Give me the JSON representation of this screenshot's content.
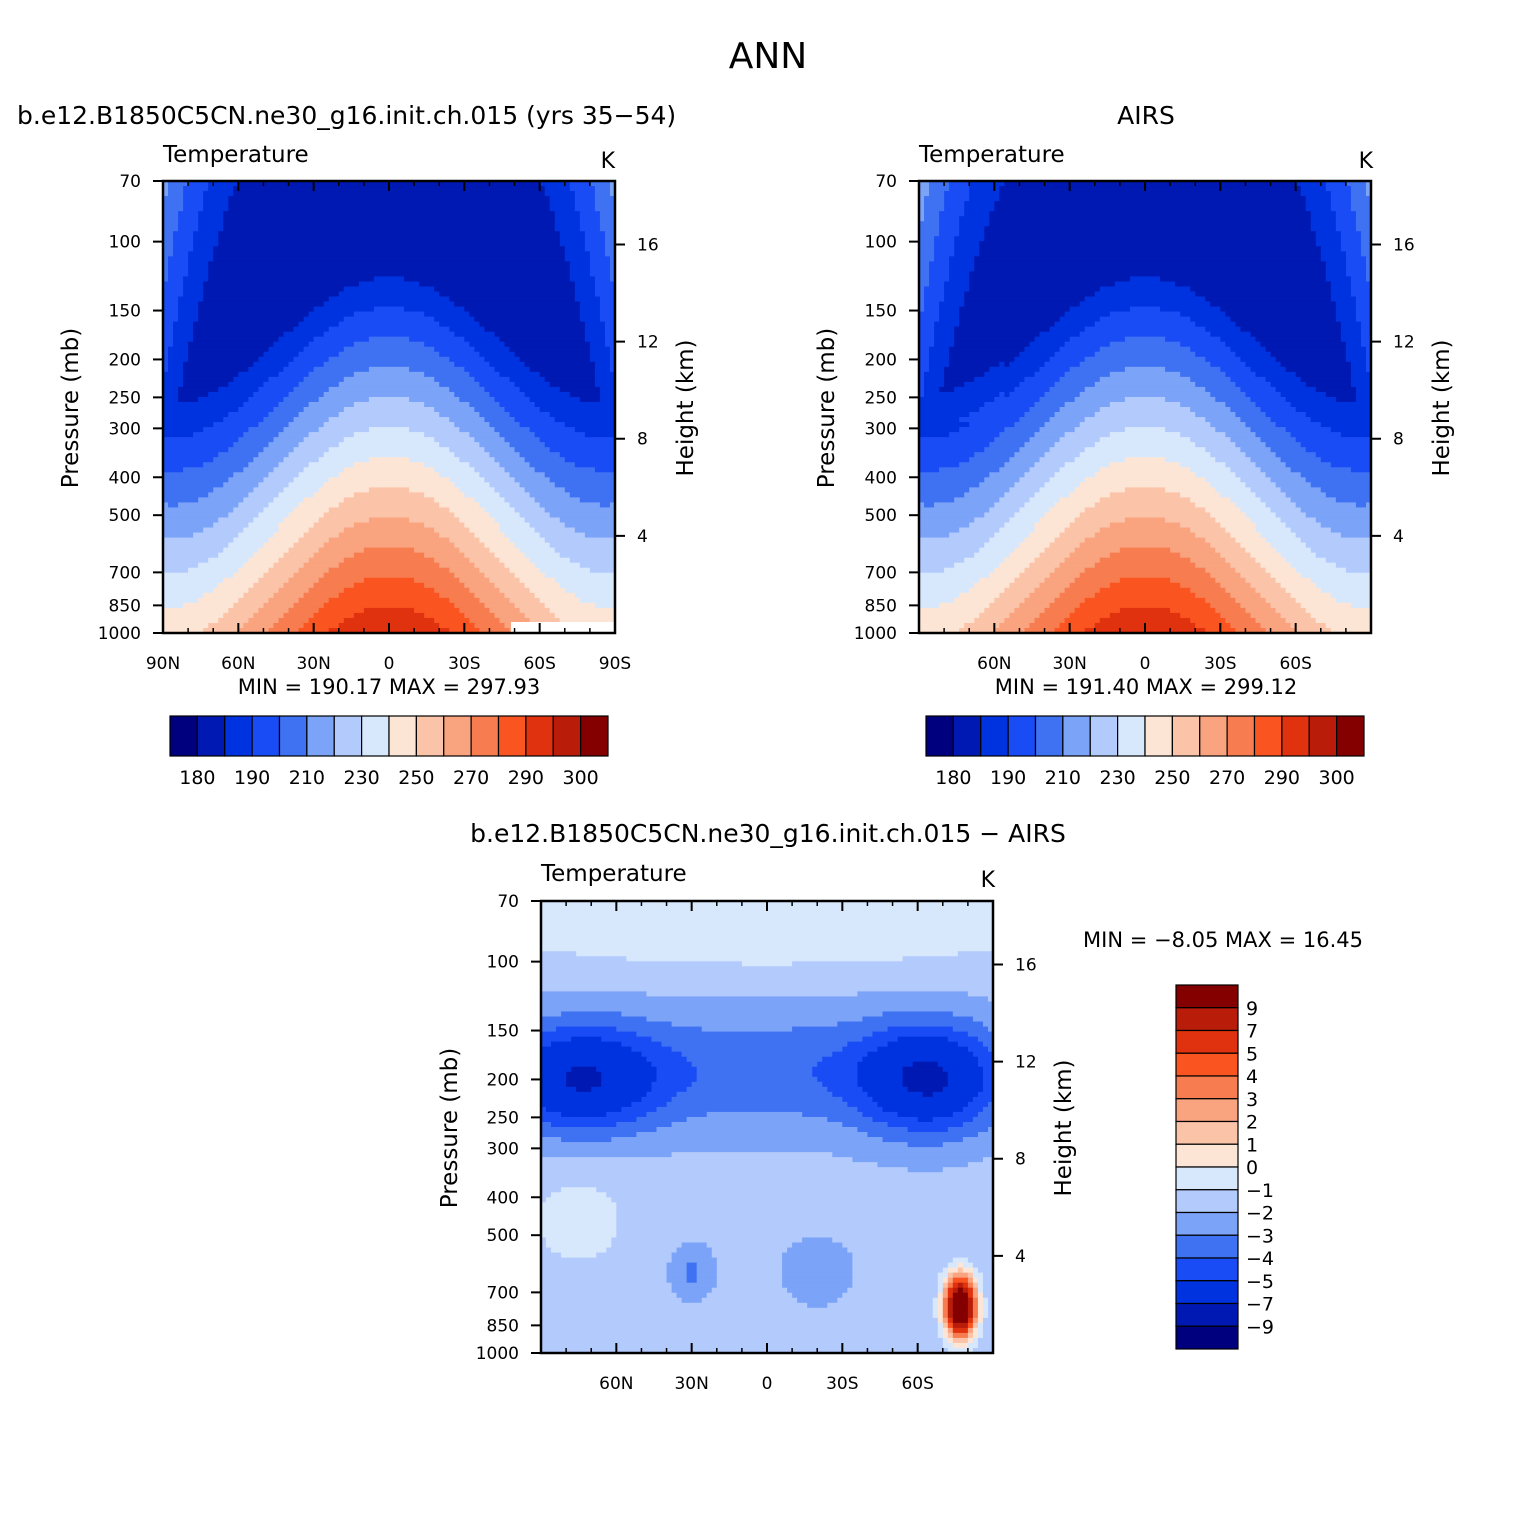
{
  "figure": {
    "title": "ANN"
  },
  "colors": {
    "abs_palette": [
      "#00007f",
      "#0019b2",
      "#0033e0",
      "#1a4cf5",
      "#3f72f2",
      "#7ba3f8",
      "#b3cafd",
      "#d8e8fc",
      "#fde5d6",
      "#fbc4a9",
      "#f9a37f",
      "#f77c4f",
      "#fa5420",
      "#e13210",
      "#b91d09",
      "#840000"
    ],
    "diff_palette": [
      "#00007f",
      "#0019b2",
      "#0033e0",
      "#1a4cf5",
      "#3f72f2",
      "#7ba3f8",
      "#b3cafd",
      "#d8e8fc",
      "#fde5d6",
      "#fbc4a9",
      "#f9a37f",
      "#f77c4f",
      "#fa5420",
      "#e13210",
      "#b91d09",
      "#840000"
    ]
  },
  "chart_data": [
    {
      "type": "heatmap",
      "id": "model",
      "title": "b.e12.B1850C5CN.ne30_g16.init.ch.015 (yrs 35−54)",
      "left_label": "Temperature",
      "units": "K",
      "xlabel": "",
      "ylabel": "Pressure (mb)",
      "y2label": "Height (km)",
      "x_ticks": [
        "90N",
        "60N",
        "30N",
        "0",
        "30S",
        "60S",
        "90S"
      ],
      "x_values": [
        90,
        60,
        30,
        0,
        -30,
        -60,
        -90
      ],
      "y_ticks": [
        "70",
        "100",
        "150",
        "200",
        "250",
        "300",
        "400",
        "500",
        "700",
        "850",
        "1000"
      ],
      "y_values": [
        70,
        100,
        150,
        200,
        250,
        300,
        400,
        500,
        700,
        850,
        1000
      ],
      "y_log": true,
      "height_ticks": [
        "4",
        "8",
        "12",
        "16"
      ],
      "height_values": [
        4,
        8,
        12,
        16
      ],
      "stats": "MIN =  190.17   MAX =  297.93",
      "min": 190.17,
      "max": 297.93,
      "levels": [
        180,
        190,
        200,
        210,
        220,
        230,
        240,
        250,
        260,
        270,
        280,
        290,
        300
      ],
      "colorbar_labels": [
        "180",
        "190",
        "210",
        "230",
        "250",
        "270",
        "290",
        "300"
      ]
    },
    {
      "type": "heatmap",
      "id": "obs",
      "title": "AIRS",
      "left_label": "Temperature",
      "units": "K",
      "xlabel": "",
      "ylabel": "Pressure (mb)",
      "y2label": "Height (km)",
      "x_ticks": [
        "60N",
        "30N",
        "0",
        "30S",
        "60S"
      ],
      "x_values": [
        60,
        30,
        0,
        -30,
        -60
      ],
      "y_ticks": [
        "70",
        "100",
        "150",
        "200",
        "250",
        "300",
        "400",
        "500",
        "700",
        "850",
        "1000"
      ],
      "y_values": [
        70,
        100,
        150,
        200,
        250,
        300,
        400,
        500,
        700,
        850,
        1000
      ],
      "y_log": true,
      "height_ticks": [
        "4",
        "8",
        "12",
        "16"
      ],
      "height_values": [
        4,
        8,
        12,
        16
      ],
      "stats": "MIN =  191.40   MAX =  299.12",
      "min": 191.4,
      "max": 299.12,
      "levels": [
        180,
        190,
        200,
        210,
        220,
        230,
        240,
        250,
        260,
        270,
        280,
        290,
        300
      ],
      "colorbar_labels": [
        "180",
        "190",
        "210",
        "230",
        "250",
        "270",
        "290",
        "300"
      ]
    },
    {
      "type": "heatmap",
      "id": "diff",
      "title": "b.e12.B1850C5CN.ne30_g16.init.ch.015 − AIRS",
      "left_label": "Temperature",
      "units": "K",
      "xlabel": "",
      "ylabel": "Pressure (mb)",
      "y2label": "Height (km)",
      "x_ticks": [
        "60N",
        "30N",
        "0",
        "30S",
        "60S"
      ],
      "x_values": [
        60,
        30,
        0,
        -30,
        -60
      ],
      "y_ticks": [
        "70",
        "100",
        "150",
        "200",
        "250",
        "300",
        "400",
        "500",
        "700",
        "850",
        "1000"
      ],
      "y_values": [
        70,
        100,
        150,
        200,
        250,
        300,
        400,
        500,
        700,
        850,
        1000
      ],
      "y_log": true,
      "height_ticks": [
        "4",
        "8",
        "12",
        "16"
      ],
      "height_values": [
        4,
        8,
        12,
        16
      ],
      "stats": "MIN =   −8.05   MAX =   16.45",
      "min": -8.05,
      "max": 16.45,
      "levels": [
        -9,
        -7,
        -5,
        -4,
        -3,
        -2,
        -1,
        0,
        1,
        2,
        3,
        4,
        5,
        7,
        9
      ],
      "colorbar_labels": [
        "9",
        "7",
        "5",
        "4",
        "3",
        "2",
        "1",
        "0",
        "−1",
        "−2",
        "−3",
        "−4",
        "−5",
        "−7",
        "−9"
      ]
    }
  ]
}
